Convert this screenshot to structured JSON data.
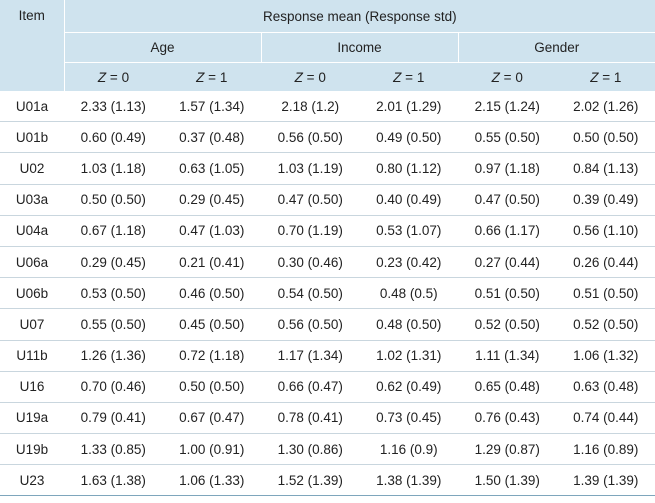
{
  "header": {
    "item": "Item",
    "group": "Response mean (Response std)",
    "subgroups": [
      "Age",
      "Income",
      "Gender"
    ],
    "z_var": "Z",
    "z_levels": [
      "0",
      "1",
      "0",
      "1",
      "0",
      "1"
    ]
  },
  "rows": [
    {
      "item": "U01a",
      "values": [
        "2.33 (1.13)",
        "1.57 (1.34)",
        "2.18 (1.2)",
        "2.01 (1.29)",
        "2.15 (1.24)",
        "2.02 (1.26)"
      ]
    },
    {
      "item": "U01b",
      "values": [
        "0.60 (0.49)",
        "0.37 (0.48)",
        "0.56 (0.50)",
        "0.49 (0.50)",
        "0.55 (0.50)",
        "0.50 (0.50)"
      ]
    },
    {
      "item": "U02",
      "values": [
        "1.03 (1.18)",
        "0.63 (1.05)",
        "1.03 (1.19)",
        "0.80 (1.12)",
        "0.97 (1.18)",
        "0.84 (1.13)"
      ]
    },
    {
      "item": "U03a",
      "values": [
        "0.50 (0.50)",
        "0.29 (0.45)",
        "0.47 (0.50)",
        "0.40 (0.49)",
        "0.47 (0.50)",
        "0.39 (0.49)"
      ]
    },
    {
      "item": "U04a",
      "values": [
        "0.67 (1.18)",
        "0.47 (1.03)",
        "0.70 (1.19)",
        "0.53 (1.07)",
        "0.66 (1.17)",
        "0.56 (1.10)"
      ]
    },
    {
      "item": "U06a",
      "values": [
        "0.29 (0.45)",
        "0.21 (0.41)",
        "0.30 (0.46)",
        "0.23 (0.42)",
        "0.27 (0.44)",
        "0.26 (0.44)"
      ]
    },
    {
      "item": "U06b",
      "values": [
        "0.53 (0.50)",
        "0.46 (0.50)",
        "0.54 (0.50)",
        "0.48 (0.5)",
        "0.51 (0.50)",
        "0.51 (0.50)"
      ]
    },
    {
      "item": "U07",
      "values": [
        "0.55 (0.50)",
        "0.45 (0.50)",
        "0.56 (0.50)",
        "0.48 (0.50)",
        "0.52 (0.50)",
        "0.52 (0.50)"
      ]
    },
    {
      "item": "U11b",
      "values": [
        "1.26 (1.36)",
        "0.72 (1.18)",
        "1.17 (1.34)",
        "1.02 (1.31)",
        "1.11 (1.34)",
        "1.06 (1.32)"
      ]
    },
    {
      "item": "U16",
      "values": [
        "0.70 (0.46)",
        "0.50 (0.50)",
        "0.66 (0.47)",
        "0.62 (0.49)",
        "0.65 (0.48)",
        "0.63 (0.48)"
      ]
    },
    {
      "item": "U19a",
      "values": [
        "0.79 (0.41)",
        "0.67 (0.47)",
        "0.78 (0.41)",
        "0.73 (0.45)",
        "0.76 (0.43)",
        "0.74 (0.44)"
      ]
    },
    {
      "item": "U19b",
      "values": [
        "1.33 (0.85)",
        "1.00 (0.91)",
        "1.30 (0.86)",
        "1.16 (0.9)",
        "1.29 (0.87)",
        "1.16 (0.89)"
      ]
    },
    {
      "item": "U23",
      "values": [
        "1.63 (1.38)",
        "1.06 (1.33)",
        "1.52 (1.39)",
        "1.38 (1.39)",
        "1.50 (1.39)",
        "1.39 (1.39)"
      ]
    }
  ]
}
